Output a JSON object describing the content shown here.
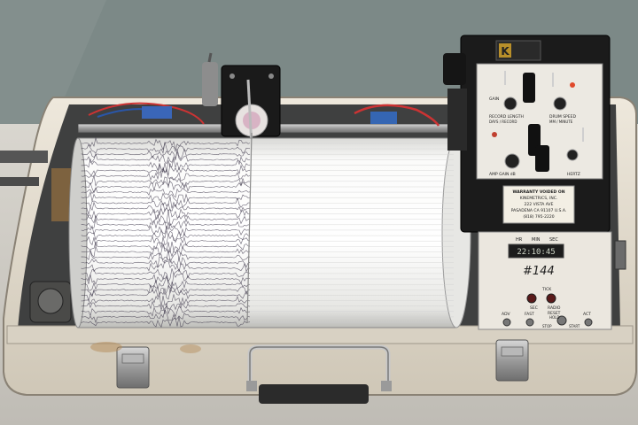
{
  "scene": {
    "subject": "seismograph",
    "case_color": "#e7e0d2",
    "drum_paper_color": "#fbfbfa",
    "trace_color": "#3a3347"
  },
  "controls": {
    "brand_logo": "K",
    "top_panel": {
      "labels": [
        "GAIN",
        "RECORD LENGTH",
        "DRUM SPEED",
        "AMP GAIN dB",
        "HERTZ"
      ],
      "sub_labels": [
        "DAYS / RECORD",
        "MM / MINUTE"
      ]
    },
    "maker_plate": {
      "lines": [
        "WARRANTY VOIDED ON",
        "KINEMETRICS, INC.",
        "222 VISTA AVE",
        "PASADENA CA 91107 U.S.A.",
        "(818) 795-2220"
      ]
    },
    "clock_panel": {
      "headers": [
        "HR",
        "MIN",
        "SEC"
      ],
      "display": "22:10:45",
      "unit_number": "#144",
      "tick_label": "TICK",
      "lamp_labels": [
        "SEC",
        "RADIO"
      ],
      "switch_labels": [
        "ADV",
        "FAST",
        "RESET",
        "ACT"
      ],
      "bottom_labels": [
        "HOLD",
        "STOP",
        "START"
      ]
    }
  }
}
